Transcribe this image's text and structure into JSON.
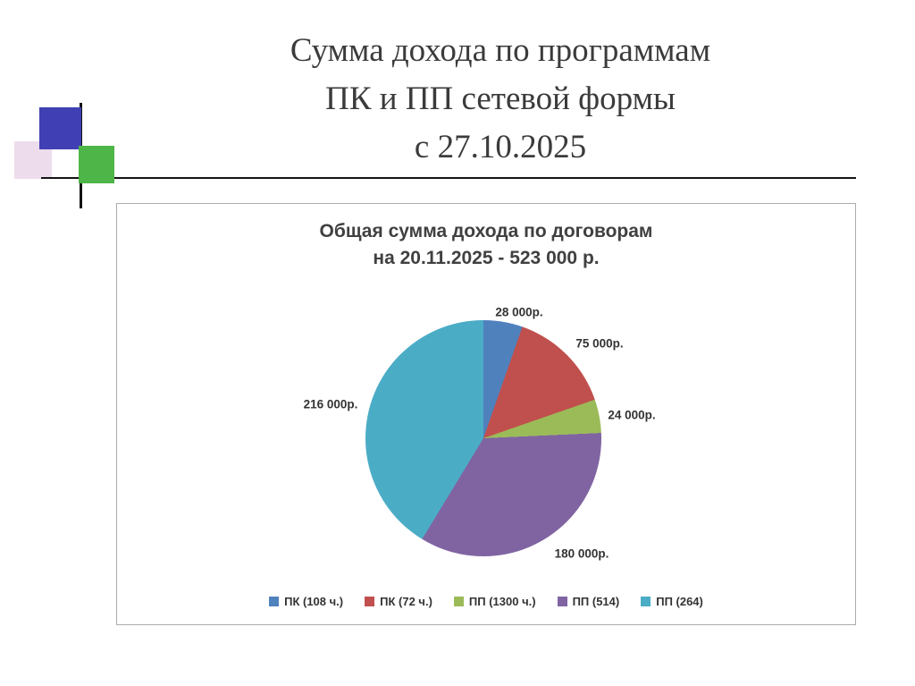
{
  "slide": {
    "title_lines": [
      "Сумма дохода по программам",
      "ПК и ПП сетевой формы",
      "с 27.10.2025"
    ]
  },
  "chart_data": {
    "type": "pie",
    "title_lines": [
      "Общая сумма дохода по договорам",
      "на 20.11.2025 - 523 000 р."
    ],
    "total_value": 523000,
    "total_label": "523 000 р.",
    "start_angle_deg": 0,
    "direction": "clockwise",
    "legend_position": "bottom",
    "slices": [
      {
        "label": "ПК (108 ч.)",
        "value": 28000,
        "data_label": "28 000р.",
        "color": "#4F81BD"
      },
      {
        "label": "ПК (72 ч.)",
        "value": 75000,
        "data_label": "75 000р.",
        "color": "#C0504D"
      },
      {
        "label": "ПП (1300 ч.)",
        "value": 24000,
        "data_label": "24 000р.",
        "color": "#9BBB59"
      },
      {
        "label": "ПП (514)",
        "value": 180000,
        "data_label": "180 000р.",
        "color": "#8064A2"
      },
      {
        "label": "ПП (264)",
        "value": 216000,
        "data_label": "216 000р.",
        "color": "#4BACC6"
      }
    ]
  }
}
